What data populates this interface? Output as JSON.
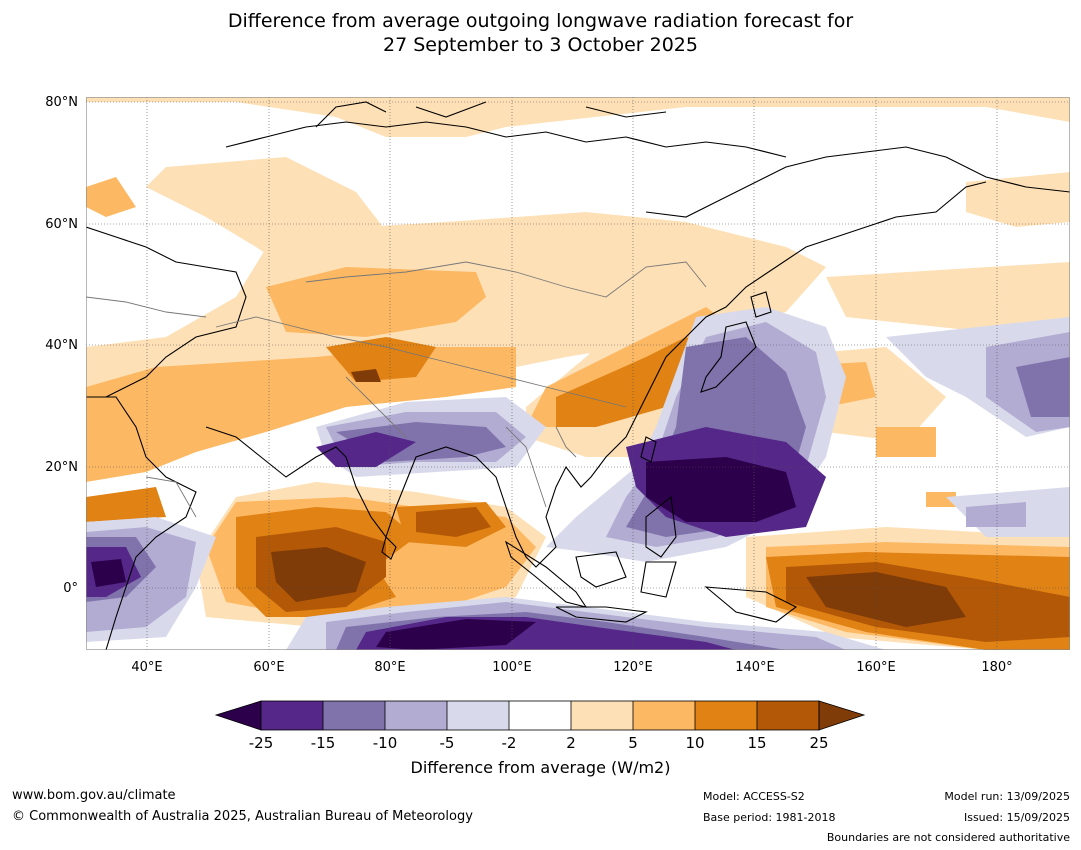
{
  "title": {
    "line1": "Difference from average outgoing longwave radiation forecast for",
    "line2": "27 September to 3 October 2025"
  },
  "map": {
    "lat_labels": [
      "80°N",
      "60°N",
      "40°N",
      "20°N",
      "0°"
    ],
    "lon_labels": [
      "40°E",
      "60°E",
      "80°E",
      "100°E",
      "120°E",
      "140°E",
      "160°E",
      "180°"
    ],
    "lon_range": [
      30,
      192
    ],
    "lat_range": [
      -10,
      80.5
    ]
  },
  "colorbar": {
    "title": "Difference from average (W/m2)",
    "ticks": [
      "-25",
      "-15",
      "-10",
      "-5",
      "-2",
      "2",
      "5",
      "10",
      "15",
      "25"
    ],
    "colors": {
      "below": "#2d004b",
      "bins": [
        "#542788",
        "#8073ac",
        "#b2abd2",
        "#d8daeb",
        "#ffffff",
        "#fee0b6",
        "#fdb863",
        "#e08214",
        "#b35806"
      ],
      "above": "#7f3b08"
    }
  },
  "footer": {
    "website": "www.bom.gov.au/climate",
    "copyright": "© Commonwealth of Australia 2025, Australian Bureau of Meteorology",
    "model": "Model: ACCESS-S2",
    "base_period": "Base period: 1981-2018",
    "model_run": "Model run: 13/09/2025",
    "issued": "Issued: 15/09/2025",
    "disclaimer": "Boundaries are not considered authoritative"
  }
}
